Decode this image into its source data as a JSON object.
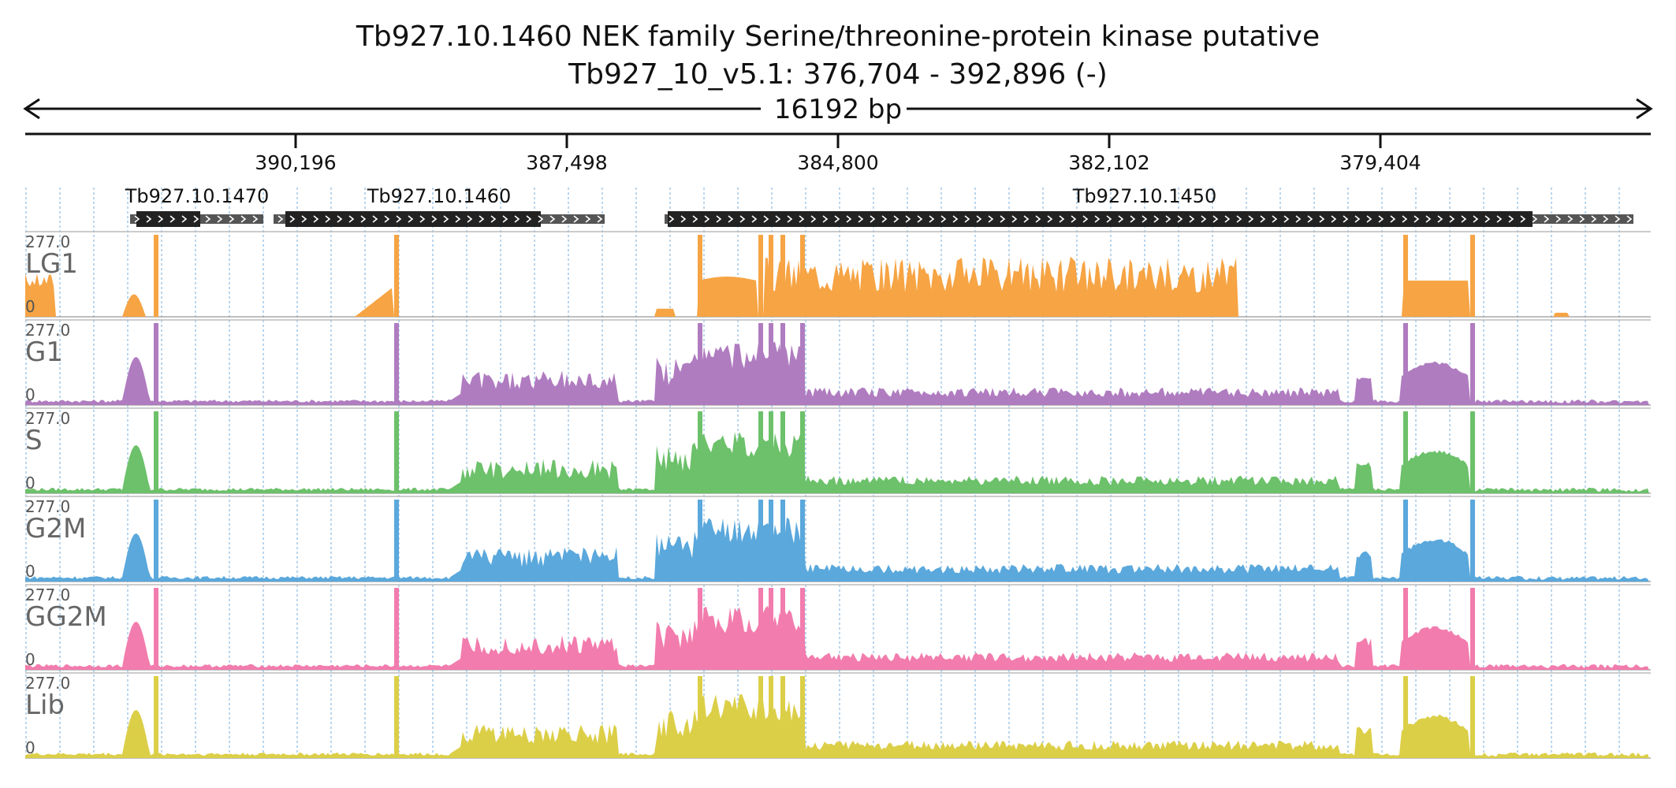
{
  "header": {
    "title": "Tb927.10.1460  NEK family Serine/threonine-protein kinase  putative",
    "locus": "Tb927_10_v5.1: 376,704 - 392,896 (-)",
    "span_label": "16192 bp"
  },
  "axis": {
    "ticks": [
      "390,196",
      "387,498",
      "384,800",
      "382,102",
      "379,404"
    ]
  },
  "genes": [
    {
      "id": "Tb927.10.1470",
      "label": "Tb927.10.1470"
    },
    {
      "id": "Tb927.10.1460",
      "label": "Tb927.10.1460"
    },
    {
      "id": "Tb927.10.1450",
      "label": "Tb927.10.1450"
    }
  ],
  "tracks": [
    {
      "name": "LG1",
      "max_label": "277.0",
      "min_label": "0",
      "color": "#f6a444"
    },
    {
      "name": "G1",
      "max_label": "277.0",
      "min_label": "0",
      "color": "#b07cc0"
    },
    {
      "name": "S",
      "max_label": "277.0",
      "min_label": "0",
      "color": "#6cc16a"
    },
    {
      "name": "G2M",
      "max_label": "277.0",
      "min_label": "0",
      "color": "#5aa8dc"
    },
    {
      "name": "GG2M",
      "max_label": "277.0",
      "min_label": "0",
      "color": "#f27cad"
    },
    {
      "name": "Lib",
      "max_label": "277.0",
      "min_label": "0",
      "color": "#dccf48"
    }
  ],
  "colors": {
    "gridline": "#9cc5e6",
    "axis": "#111111",
    "gene_block": "#222222",
    "utr_block": "#555555"
  }
}
